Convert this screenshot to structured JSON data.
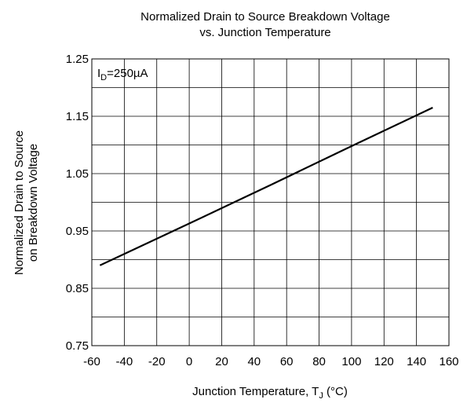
{
  "chart_data": {
    "type": "line",
    "title": [
      "Normalized Drain to Source Breakdown Voltage",
      "vs. Junction Temperature"
    ],
    "xlabel": {
      "text": "Junction Temperature, T",
      "sub": "J",
      "rest": " (°C)"
    },
    "ylabel": [
      "Normalized Drain to Source",
      "on Breakdown Voltage"
    ],
    "annotation": {
      "text": "I",
      "sub": "D",
      "rest": "=250µA"
    },
    "series": [
      {
        "color": "#000000",
        "x": [
          -55,
          0,
          50,
          100,
          150
        ],
        "values": [
          0.89,
          0.963,
          1.03,
          1.098,
          1.165
        ]
      }
    ],
    "xlim": [
      -60,
      160
    ],
    "xticks": [
      -60,
      -40,
      -20,
      0,
      20,
      40,
      60,
      80,
      100,
      120,
      140,
      160
    ],
    "ylim": [
      0.75,
      1.25
    ],
    "yticks": [
      0.75,
      0.85,
      0.95,
      1.05,
      1.15,
      1.25
    ],
    "yminor": [
      0.8,
      0.9,
      1.0,
      1.1,
      1.2
    ],
    "grid": true
  }
}
